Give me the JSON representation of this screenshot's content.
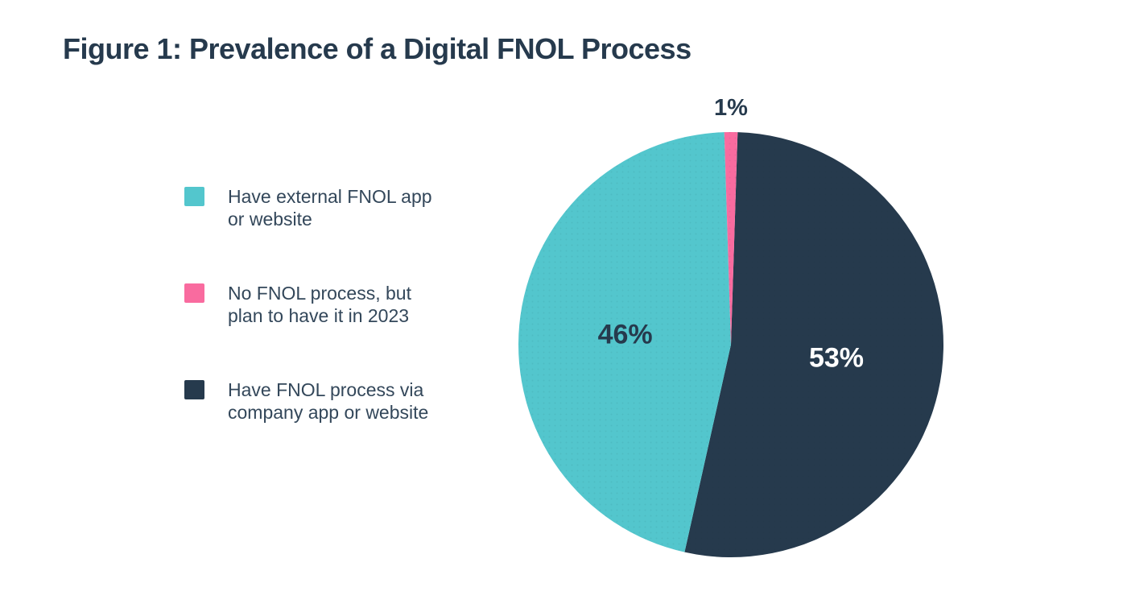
{
  "title": "Figure 1: Prevalence of a Digital FNOL Process",
  "colors": {
    "background": "#FFFFFF",
    "teal": "#53C6CD",
    "pink": "#F96B9F",
    "navy": "#263A4D",
    "title_text": "#263A4D",
    "legend_text": "#33475A"
  },
  "legend": {
    "items": [
      {
        "label": "Have external FNOL app\nor website",
        "swatch_color": "#53C6CD"
      },
      {
        "label": "No FNOL process, but\nplan to have it in 2023",
        "swatch_color": "#F96B9F"
      },
      {
        "label": "Have FNOL process via\ncompany app or website",
        "swatch_color": "#263A4D"
      }
    ]
  },
  "chart_data": {
    "type": "pie",
    "title": "Figure 1: Prevalence of a Digital FNOL Process",
    "legend_position": "left",
    "direction": "clockwise",
    "start_angle_deg": 1.8,
    "slices": [
      {
        "label": "Have FNOL process via company app or website",
        "value": 53,
        "display": "53%",
        "color": "#263A4D",
        "label_color": "#FFFFFF",
        "label_outside": false
      },
      {
        "label": "Have external FNOL app or website",
        "value": 46,
        "display": "46%",
        "color": "#53C6CD",
        "label_color": "#263A4D",
        "label_outside": false
      },
      {
        "label": "No FNOL process, but plan to have it in 2023",
        "value": 1,
        "display": "1%",
        "color": "#F96B9F",
        "label_color": "#263A4D",
        "label_outside": true
      }
    ]
  }
}
